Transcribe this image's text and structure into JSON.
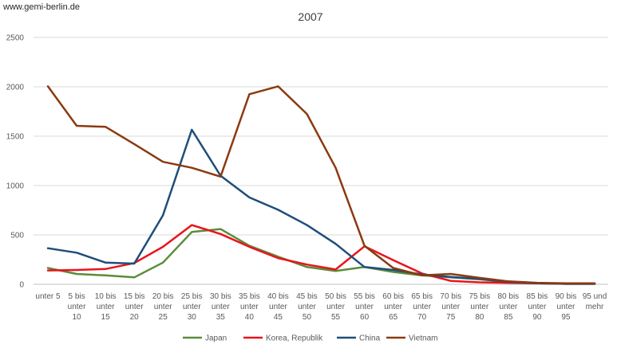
{
  "source_label": "www.gemi-berlin.de",
  "chart_data": {
    "type": "line",
    "title": "2007",
    "xlabel": "",
    "ylabel": "",
    "ylim": [
      0,
      2500
    ],
    "yticks": [
      0,
      500,
      1000,
      1500,
      2000,
      2500
    ],
    "grid": true,
    "legend_position": "bottom",
    "categories": [
      [
        "unter 5"
      ],
      [
        "5 bis",
        "unter",
        "10"
      ],
      [
        "10 bis",
        "unter",
        "15"
      ],
      [
        "15 bis",
        "unter",
        "20"
      ],
      [
        "20 bis",
        "unter",
        "25"
      ],
      [
        "25 bis",
        "unter",
        "30"
      ],
      [
        "30 bis",
        "unter",
        "35"
      ],
      [
        "35 bis",
        "unter",
        "40"
      ],
      [
        "40 bis",
        "unter",
        "45"
      ],
      [
        "45 bis",
        "unter",
        "50"
      ],
      [
        "50 bis",
        "unter",
        "55"
      ],
      [
        "55 bis",
        "unter",
        "60"
      ],
      [
        "60 bis",
        "unter",
        "65"
      ],
      [
        "65 bis",
        "unter",
        "70"
      ],
      [
        "70 bis",
        "unter",
        "75"
      ],
      [
        "75 bis",
        "unter",
        "80"
      ],
      [
        "80 bis",
        "unter",
        "85"
      ],
      [
        "85 bis",
        "unter",
        "90"
      ],
      [
        "90 bis",
        "unter",
        "95"
      ],
      [
        "95 und",
        "mehr"
      ]
    ],
    "series": [
      {
        "name": "Japan",
        "color": "#5b8c3a",
        "values": [
          165,
          105,
          90,
          70,
          220,
          530,
          560,
          390,
          280,
          175,
          135,
          175,
          125,
          90,
          70,
          50,
          25,
          10,
          5,
          5
        ]
      },
      {
        "name": "Korea, Republik",
        "color": "#e8141c",
        "values": [
          140,
          145,
          155,
          215,
          380,
          600,
          510,
          380,
          265,
          200,
          150,
          385,
          245,
          110,
          35,
          20,
          15,
          10,
          5,
          5
        ]
      },
      {
        "name": "China",
        "color": "#1f4e79",
        "values": [
          365,
          320,
          220,
          210,
          700,
          1565,
          1100,
          880,
          755,
          600,
          410,
          175,
          145,
          100,
          75,
          55,
          25,
          10,
          5,
          5
        ]
      },
      {
        "name": "Vietnam",
        "color": "#8b3a10",
        "values": [
          2005,
          1605,
          1595,
          1420,
          1240,
          1180,
          1090,
          1925,
          2005,
          1725,
          1180,
          390,
          165,
          90,
          105,
          65,
          30,
          15,
          10,
          10
        ]
      }
    ]
  }
}
